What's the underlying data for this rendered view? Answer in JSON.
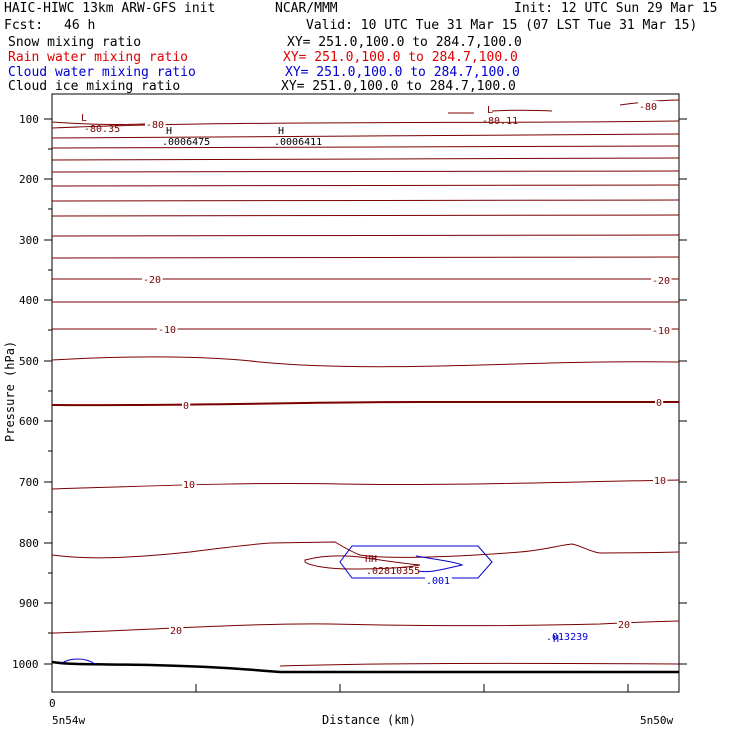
{
  "header": {
    "title": "HAIC-HIWC 13km ARW-GFS init",
    "org": "NCAR/MMM",
    "init": "Init: 12 UTC Sun 29 Mar 15",
    "fcst_label": "Fcst:",
    "fcst_value": "46 h",
    "valid": "Valid: 10 UTC Tue 31 Mar 15 (07 LST Tue 31 Mar 15)"
  },
  "fields": [
    {
      "name": "Snow mixing ratio",
      "xy": "XY= 251.0,100.0 to 284.7,100.0",
      "color": "#000000"
    },
    {
      "name": "Rain water mixing ratio",
      "xy": "XY= 251.0,100.0 to 284.7,100.0",
      "color": "#e00000"
    },
    {
      "name": "Cloud water mixing ratio",
      "xy": "XY= 251.0,100.0 to 284.7,100.0",
      "color": "#0000d0"
    },
    {
      "name": "Cloud ice mixing ratio",
      "xy": "XY= 251.0,100.0 to 284.7,100.0",
      "color": "#000000"
    }
  ],
  "chart_data": {
    "type": "line",
    "ylabel": "Pressure (hPa)",
    "xlabel": "Distance (km)",
    "x_ticks": [
      "0",
      "5n54w",
      "5n50w"
    ],
    "y_ticks": [
      "100",
      "200",
      "300",
      "400",
      "500",
      "600",
      "700",
      "800",
      "900",
      "1000"
    ],
    "ylim": [
      1050,
      50
    ],
    "temperature_contour_color": "#7a0000",
    "cloud_water_color": "#0000d0",
    "contour_labels": [
      {
        "text": "-80.35",
        "kind": "min",
        "symbol": "L",
        "color": "#7a0000"
      },
      {
        "text": "-80",
        "kind": "iso",
        "color": "#7a0000"
      },
      {
        "text": ".0006475",
        "kind": "max",
        "symbol": "H",
        "color": "#000000"
      },
      {
        "text": ".0006411",
        "kind": "max",
        "symbol": "H",
        "color": "#000000"
      },
      {
        "text": "-80.11",
        "kind": "min",
        "symbol": "L",
        "color": "#7a0000"
      },
      {
        "text": "-80",
        "kind": "iso",
        "color": "#7a0000"
      },
      {
        "text": "-20",
        "kind": "iso",
        "color": "#7a0000"
      },
      {
        "text": "-20",
        "kind": "iso",
        "color": "#7a0000"
      },
      {
        "text": "-10",
        "kind": "iso",
        "color": "#7a0000"
      },
      {
        "text": "-10",
        "kind": "iso",
        "color": "#7a0000"
      },
      {
        "text": "0",
        "kind": "iso",
        "color": "#7a0000"
      },
      {
        "text": "0",
        "kind": "iso",
        "color": "#7a0000"
      },
      {
        "text": "10",
        "kind": "iso",
        "color": "#7a0000"
      },
      {
        "text": "10",
        "kind": "iso",
        "color": "#7a0000"
      },
      {
        "text": "HH",
        "kind": "max",
        "color": "#7a0000"
      },
      {
        "text": ".02810355",
        "kind": "value",
        "color": "#7a0000"
      },
      {
        "text": ".001",
        "kind": "iso",
        "color": "#0000d0"
      },
      {
        "text": "H",
        "kind": "max",
        "color": "#0000d0"
      },
      {
        "text": ".013239",
        "kind": "value",
        "color": "#0000d0"
      },
      {
        "text": "20",
        "kind": "iso",
        "color": "#7a0000"
      },
      {
        "text": "20",
        "kind": "iso",
        "color": "#7a0000"
      }
    ]
  }
}
